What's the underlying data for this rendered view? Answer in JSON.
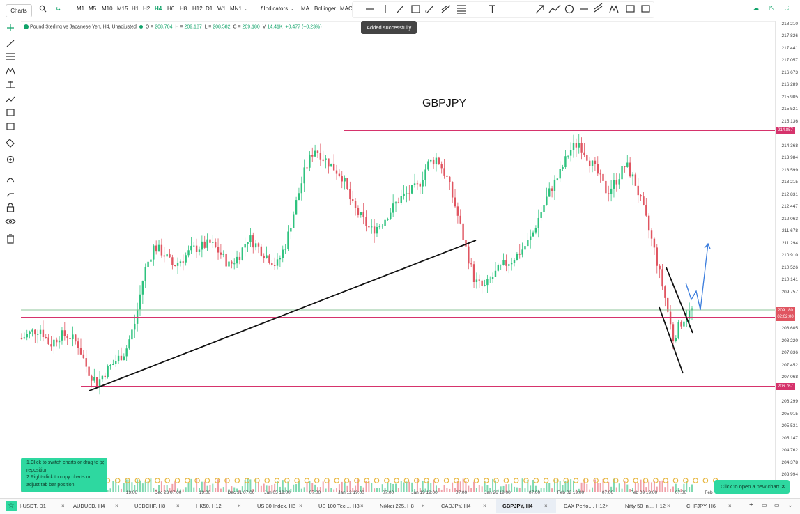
{
  "toolbar": {
    "charts_label": "Charts",
    "timeframes": [
      "M1",
      "M5",
      "M10",
      "M15",
      "H1",
      "H2",
      "H4",
      "H6",
      "H8",
      "H12",
      "D1",
      "W1",
      "MN1"
    ],
    "active_timeframe": "H4",
    "indicators_label": "Indicators",
    "ma_label": "MA",
    "bollinger_label": "Bollinger",
    "mac_label": "MAC"
  },
  "legend": {
    "symbol": "Pound Sterling vs Japanese Yen, H4, Unadjusted",
    "open_label": "O =",
    "open": "208.704",
    "high_label": "H =",
    "high": "209.187",
    "low_label": "L =",
    "low": "208.582",
    "close_label": "C =",
    "close": "209.180",
    "volume_label": "V",
    "volume": "14.41K",
    "change": "+0.477 (+0.23%)"
  },
  "toast": "Added successfully",
  "chart_title": "GBPJPY",
  "price_axis": [
    "218.210",
    "217.826",
    "217.441",
    "217.057",
    "216.673",
    "216.289",
    "215.905",
    "215.521",
    "215.136",
    "214.368",
    "213.984",
    "213.599",
    "213.215",
    "212.831",
    "212.447",
    "212.063",
    "211.678",
    "211.294",
    "210.910",
    "210.526",
    "210.141",
    "209.757",
    "208.605",
    "208.220",
    "207.836",
    "207.452",
    "207.068",
    "206.299",
    "205.915",
    "205.531",
    "205.147",
    "204.762",
    "204.378",
    "203.994"
  ],
  "price_tags": {
    "top_level": "214.857",
    "current_price": "209.180",
    "countdown": "02:02:00",
    "bottom_level": "206.767"
  },
  "time_axis": [
    "19:00",
    "Dec 23 07:00",
    "19:00",
    "Dec 31 07:00",
    "Jan 05 19:00",
    "07:00",
    "Jan 12 19:00",
    "07:00",
    "Jan 19 19:00",
    "07:00",
    "Jan 26 19:00",
    "07:00",
    "Feb 02 19:00",
    "07:00",
    "Feb 09 19:00",
    "07:00",
    "Feb"
  ],
  "tooltip": {
    "line1": "1.Click to switch charts or drag to reposition",
    "line2": "2.Right-click to copy charts or adjust tab bar position"
  },
  "new_chart_label": "Click to open a new chart",
  "tabs": [
    "I-USDT, D1",
    "AUDUSD, H4",
    "USDCHF, H8",
    "HK50, H12",
    "US 30 Index, H8",
    "US 100 Tec..., H8",
    "Nikkei 225, H8",
    "CADJPY, H4",
    "GBPJPY, H4",
    "DAX Perfo..., H12",
    "Nifty 50 In..., H12",
    "CHFJPY, H6"
  ],
  "active_tab": "GBPJPY, H4",
  "colors": {
    "accent": "#11a36a",
    "level_line": "#d6336c",
    "up_candle": "#2ec27e",
    "down_candle": "#e05561",
    "toast_bg": "#444444",
    "tip_bg": "#2ed8a0"
  },
  "chart_data": {
    "type": "candlestick",
    "title": "GBPJPY",
    "ylim": [
      203.994,
      218.21
    ],
    "levels": [
      214.857,
      208.5,
      206.767
    ],
    "current_price": 209.18,
    "series": [
      {
        "values": [
          208.3,
          208.5,
          208.6,
          208.1,
          208.4,
          208.4,
          208.1,
          207.3,
          206.9,
          207.3,
          207.6,
          207.9,
          208.8,
          210.4,
          211.2,
          211.0,
          210.6,
          210.8,
          211.1,
          211.2,
          211.3,
          211.0,
          210.6,
          210.9,
          211.5,
          211.2,
          210.9,
          210.6,
          211.3,
          212.5,
          213.6,
          214.3,
          214.0,
          213.7,
          213.4,
          212.5,
          212.1,
          211.7,
          211.9,
          212.3,
          212.7,
          212.9,
          213.1,
          213.8,
          214.0,
          213.4,
          212.4,
          211.2,
          210.1,
          209.9,
          210.3,
          210.6,
          210.8,
          211.1,
          211.5,
          212.3,
          213.0,
          213.5,
          214.2,
          214.5,
          214.0,
          213.5,
          212.9,
          213.3,
          213.8,
          213.2,
          212.2,
          211.1,
          209.8,
          208.3,
          208.9,
          209.2
        ]
      }
    ]
  }
}
